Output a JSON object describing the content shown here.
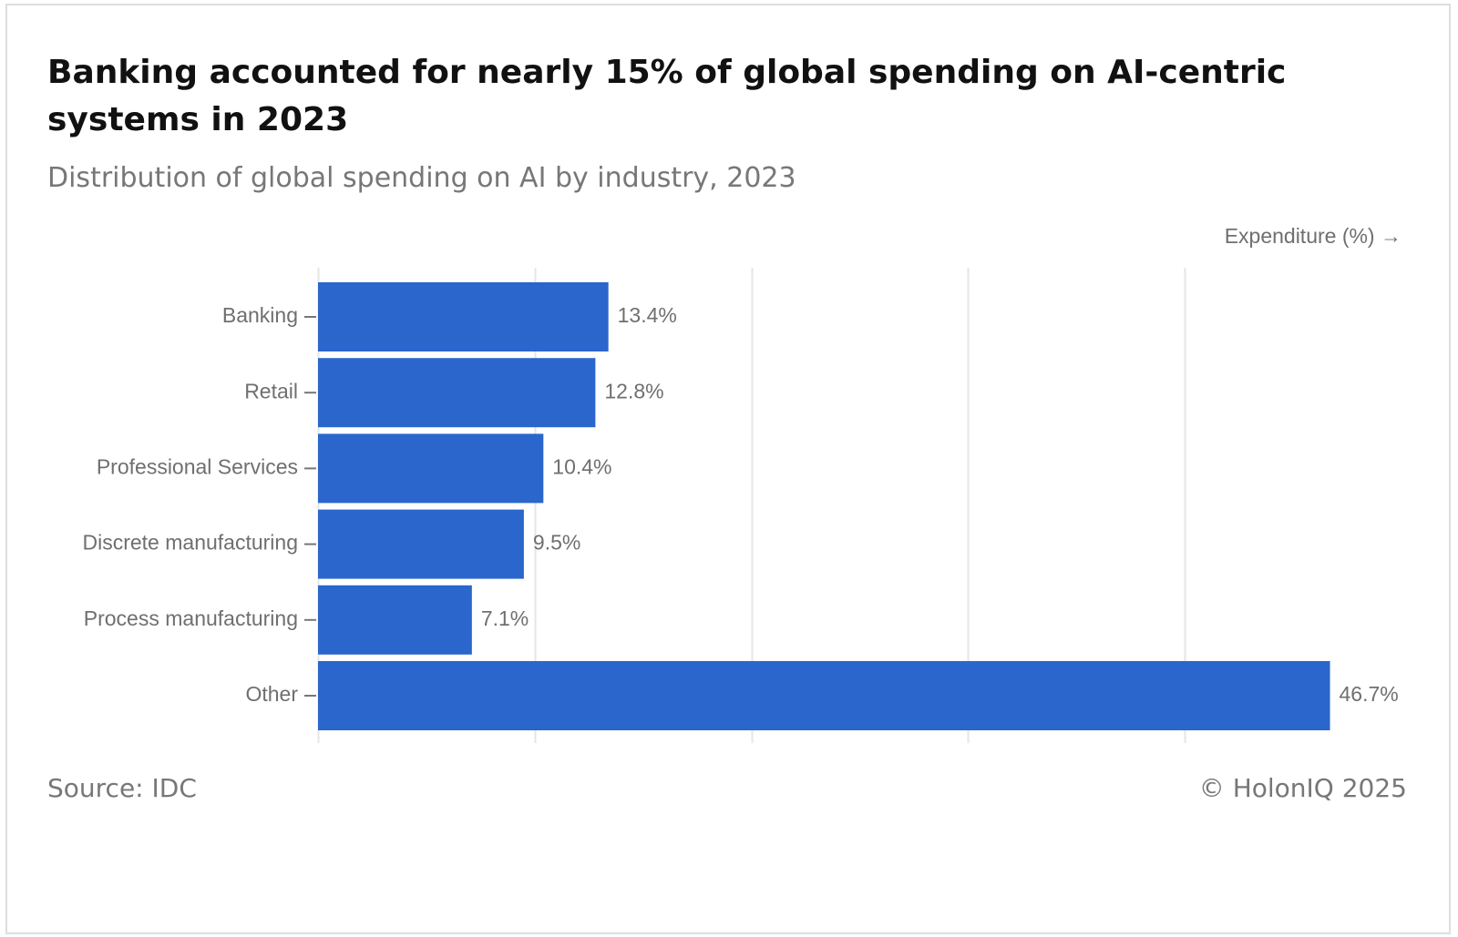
{
  "title": "Banking accounted for nearly 15% of global spending on AI-centric systems in 2023",
  "subtitle": "Distribution of global spending on AI by industry, 2023",
  "source": "Source: IDC",
  "copyright": "© HolonIQ 2025",
  "colors": {
    "bar": "#2a66cc",
    "grid": "#e6e6e6",
    "label": "#6f6f6f"
  },
  "chart_data": {
    "type": "bar",
    "orientation": "horizontal",
    "title": "Banking accounted for nearly 15% of global spending on AI-centric systems in 2023",
    "subtitle": "Distribution of global spending on AI by industry, 2023",
    "xlabel": "Expenditure (%) →",
    "ylabel": "",
    "categories": [
      "Banking",
      "Retail",
      "Professional Services",
      "Discrete manufacturing",
      "Process manufacturing",
      "Other"
    ],
    "values": [
      13.4,
      12.8,
      10.4,
      9.5,
      7.1,
      46.7
    ],
    "data_labels": [
      "13.4%",
      "12.8%",
      "10.4%",
      "9.5%",
      "7.1%",
      "46.7%"
    ],
    "xlim": [
      0,
      50
    ],
    "grid": true,
    "legend": "none",
    "x_tick_labels_shown": false
  }
}
